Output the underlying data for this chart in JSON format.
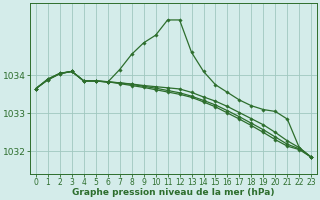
{
  "background_color": "#d4ecea",
  "grid_color": "#a0c8c0",
  "line_color": "#2d6e2d",
  "xlabel": "Graphe pression niveau de la mer (hPa)",
  "xlabel_fontsize": 6.5,
  "tick_fontsize": 5.5,
  "ytick_fontsize": 6.5,
  "ylim": [
    1031.4,
    1035.9
  ],
  "xlim": [
    -0.5,
    23.5
  ],
  "yticks": [
    1032,
    1033,
    1034
  ],
  "xticks": [
    0,
    1,
    2,
    3,
    4,
    5,
    6,
    7,
    8,
    9,
    10,
    11,
    12,
    13,
    14,
    15,
    16,
    17,
    18,
    19,
    20,
    21,
    22,
    23
  ],
  "series": [
    {
      "y": [
        1033.65,
        1033.9,
        1034.05,
        1034.1,
        1033.85,
        1033.85,
        1033.82,
        1034.15,
        1034.55,
        1034.85,
        1035.05,
        1035.45,
        1035.45,
        1034.6,
        1034.1,
        1033.75,
        1033.55,
        1033.35,
        1033.2,
        1033.1,
        1033.05,
        1032.85,
        1032.1,
        1031.85
      ],
      "markers": true
    },
    {
      "y": [
        1033.65,
        1033.9,
        1034.05,
        1034.1,
        1033.85,
        1033.85,
        1033.82,
        1033.8,
        1033.77,
        1033.73,
        1033.7,
        1033.67,
        1033.64,
        1033.55,
        1033.43,
        1033.32,
        1033.18,
        1033.02,
        1032.86,
        1032.7,
        1032.5,
        1032.28,
        1032.1,
        1031.85
      ],
      "markers": true
    },
    {
      "y": [
        1033.65,
        1033.88,
        1034.04,
        1034.1,
        1033.85,
        1033.85,
        1033.83,
        1033.8,
        1033.76,
        1033.71,
        1033.66,
        1033.6,
        1033.54,
        1033.45,
        1033.34,
        1033.22,
        1033.07,
        1032.91,
        1032.74,
        1032.57,
        1032.38,
        1032.19,
        1032.07,
        1031.85
      ],
      "markers": true
    },
    {
      "y": [
        1033.65,
        1033.88,
        1034.04,
        1034.1,
        1033.85,
        1033.85,
        1033.83,
        1033.78,
        1033.73,
        1033.68,
        1033.62,
        1033.56,
        1033.5,
        1033.42,
        1033.3,
        1033.17,
        1033.01,
        1032.85,
        1032.68,
        1032.5,
        1032.31,
        1032.14,
        1032.05,
        1031.85
      ],
      "markers": true
    }
  ]
}
